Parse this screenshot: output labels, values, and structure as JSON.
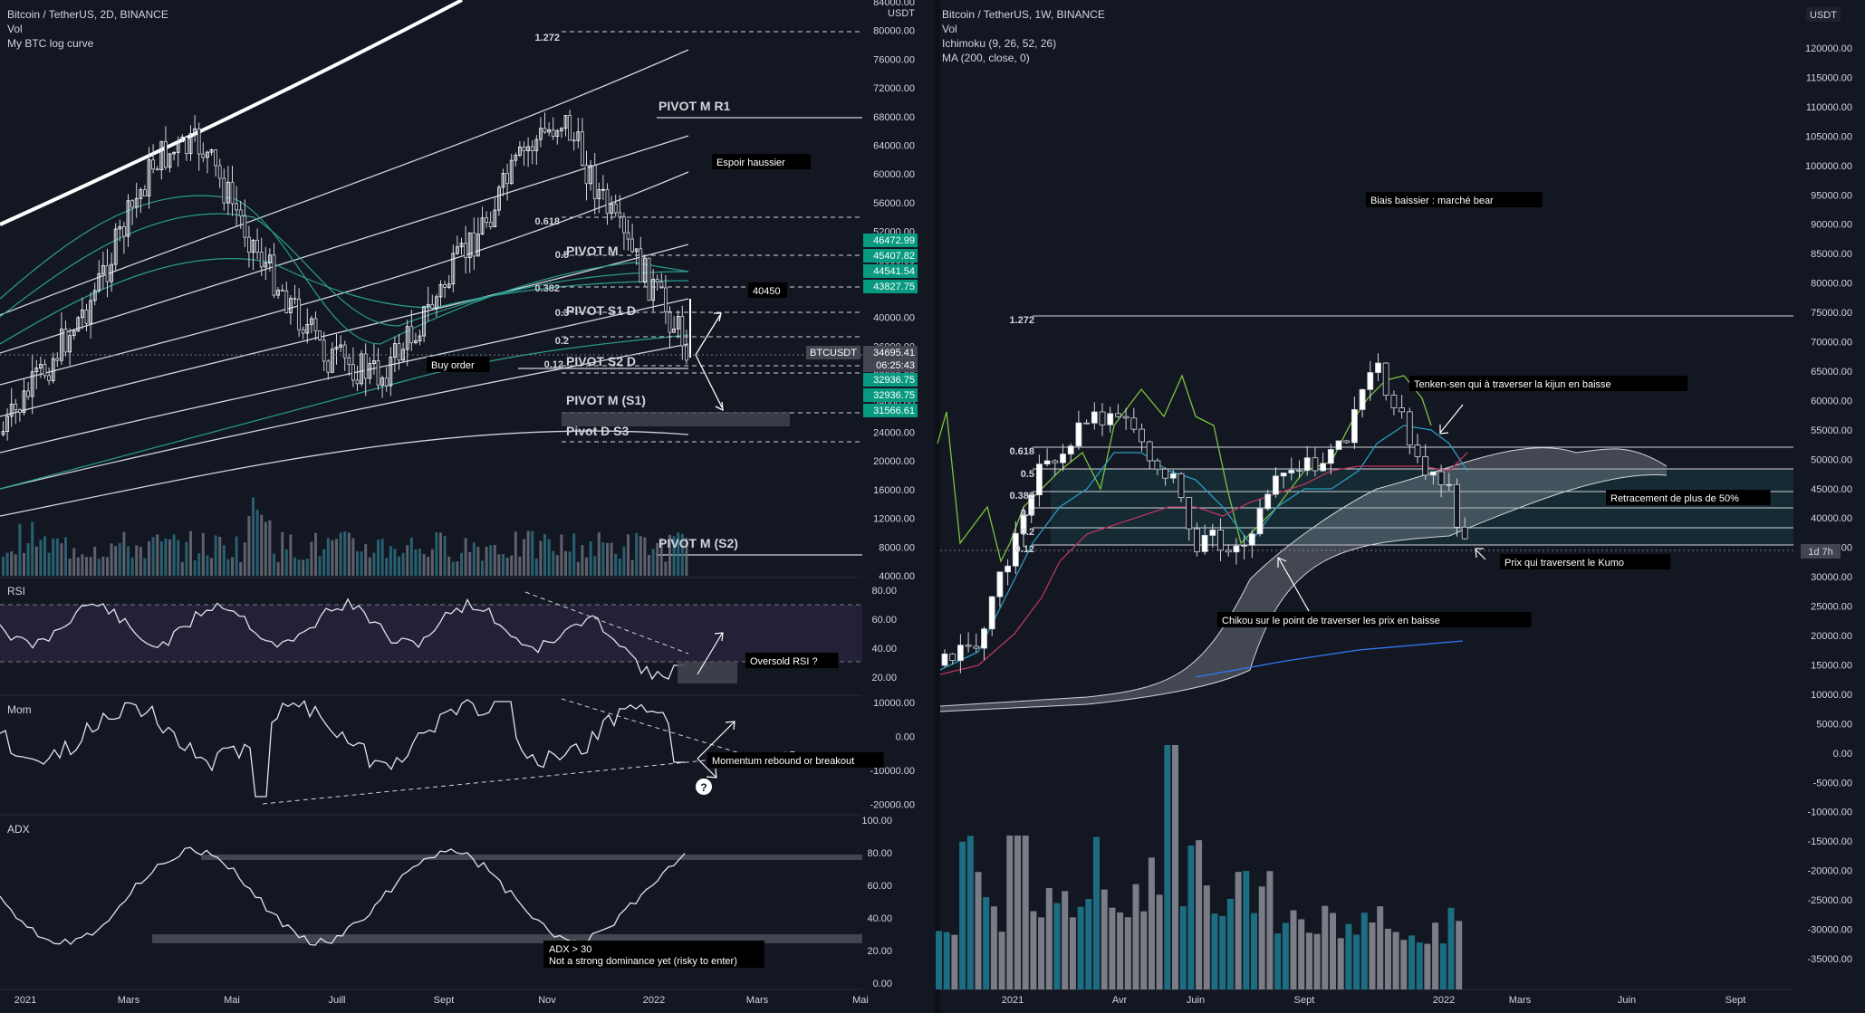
{
  "left_panel": {
    "title": "Bitcoin / TetherUS, 2D, BINANCE",
    "indicators": [
      "Vol",
      "My BTC log curve"
    ],
    "currency": "USDT",
    "price_ticks": [
      "84000.00",
      "80000.00",
      "76000.00",
      "72000.00",
      "68000.00",
      "64000.00",
      "60000.00",
      "56000.00",
      "52000.00",
      "48000.00",
      "44000.00",
      "40000.00",
      "36000.00",
      "32000.00",
      "28000.00",
      "24000.00",
      "20000.00",
      "16000.00",
      "12000.00",
      "8000.00",
      "4000.00"
    ],
    "rsi_ticks": [
      "80.00",
      "60.00",
      "40.00",
      "20.00"
    ],
    "mom_ticks": [
      "10000.00",
      "0.00",
      "-10000.00",
      "-20000.00"
    ],
    "adx_ticks": [
      "100.00",
      "80.00",
      "60.00",
      "40.00",
      "20.00",
      "0.00"
    ],
    "time_ticks": [
      "2021",
      "Mars",
      "Mai",
      "Juill",
      "Sept",
      "Nov",
      "2022",
      "Mars",
      "Mai"
    ],
    "price_tags": [
      {
        "text": "46472.99",
        "color": "#089981"
      },
      {
        "text": "45407.82",
        "color": "#089981"
      },
      {
        "text": "44541.54",
        "color": "#089981"
      },
      {
        "text": "43827.75",
        "color": "#089981"
      },
      {
        "text": "34695.41",
        "color": "#434651"
      },
      {
        "text": "06:25:43",
        "color": "#434651"
      },
      {
        "text": "32936.75",
        "color": "#089981"
      },
      {
        "text": "32936.75",
        "color": "#089981"
      },
      {
        "text": "31566.61",
        "color": "#089981"
      }
    ],
    "symbol_tag": "BTCUSDT",
    "fib_labels": [
      "1.272",
      "0.618",
      "0.5",
      "0.382",
      "0.3",
      "0.2",
      "0.12"
    ],
    "pivot_labels": [
      "PIVOT M R1",
      "PIVOT M",
      "PIVOT S1 D",
      "PIVOT S2 D",
      "PIVOT M (S1)",
      "Pivot D S3",
      "PIVOT M (S2)"
    ],
    "annotations": {
      "hope": "Espoir haussier",
      "level": "40450",
      "buy": "Buy order",
      "rsi_note": "Oversold RSI ?",
      "mom_note": "Momentum rebound or breakout",
      "question": "?",
      "adx_line1": "ADX > 30",
      "adx_line2": "Not a strong dominance yet (risky to enter)"
    },
    "pane_labels": {
      "rsi": "RSI",
      "mom": "Mom",
      "adx": "ADX"
    }
  },
  "right_panel": {
    "title": "Bitcoin / TetherUS, 1W, BINANCE",
    "indicators": [
      "Vol",
      "Ichimoku (9, 26, 52, 26)",
      "MA (200, close, 0)"
    ],
    "currency": "USDT",
    "price_ticks": [
      "120000.00",
      "115000.00",
      "110000.00",
      "105000.00",
      "100000.00",
      "95000.00",
      "90000.00",
      "85000.00",
      "80000.00",
      "75000.00",
      "70000.00",
      "65000.00",
      "60000.00",
      "55000.00",
      "50000.00",
      "45000.00",
      "40000.00",
      "35000.00",
      "30000.00",
      "25000.00",
      "20000.00",
      "15000.00",
      "10000.00",
      "5000.00",
      "0.00",
      "-5000.00",
      "-10000.00",
      "-15000.00",
      "-20000.00",
      "-25000.00",
      "-30000.00",
      "-35000.00"
    ],
    "time_ticks": [
      "2021",
      "Avr",
      "Juin",
      "Sept",
      "2022",
      "Mars",
      "Juin",
      "Sept"
    ],
    "countdown": "1d 7h",
    "fib_labels": [
      "1.272",
      "0.618",
      "0.5",
      "0.382",
      "0.3",
      "0.2",
      "0.12"
    ],
    "annotations": {
      "bias": "Biais baissier : marché bear",
      "tenken": "Tenken-sen qui à traverser la kijun en baisse",
      "retrace": "Retracement de plus de 50%",
      "kumo": "Prix qui traversent le Kumo",
      "chikou": "Chikou sur le point de traverser les prix en baisse"
    }
  },
  "chart_data": [
    {
      "type": "line",
      "title": "Bitcoin / TetherUS, 2D, BINANCE",
      "x": [
        "2021-01",
        "2021-02",
        "2021-03",
        "2021-04",
        "2021-05",
        "2021-06",
        "2021-07",
        "2021-08",
        "2021-09",
        "2021-10",
        "2021-11",
        "2021-12",
        "2022-01"
      ],
      "series": [
        {
          "values": [
            29000,
            45000,
            57000,
            60000,
            37000,
            34000,
            33000,
            45000,
            44000,
            60000,
            62000,
            48000,
            36000
          ]
        }
      ],
      "ylim": [
        4000,
        84000
      ],
      "legend": "none",
      "grid": false
    },
    {
      "type": "line",
      "title": "Bitcoin / TetherUS, 1W, BINANCE",
      "x": [
        "2021-01",
        "2021-02",
        "2021-03",
        "2021-04",
        "2021-05",
        "2021-06",
        "2021-07",
        "2021-08",
        "2021-09",
        "2021-10",
        "2021-11",
        "2021-12",
        "2022-01"
      ],
      "series": [
        {
          "values": [
            33000,
            46000,
            57000,
            56000,
            36000,
            35000,
            40000,
            47000,
            43000,
            61000,
            57000,
            47000,
            35000
          ]
        }
      ],
      "ylim": [
        -35000,
        120000
      ],
      "legend": "none",
      "grid": false
    }
  ]
}
